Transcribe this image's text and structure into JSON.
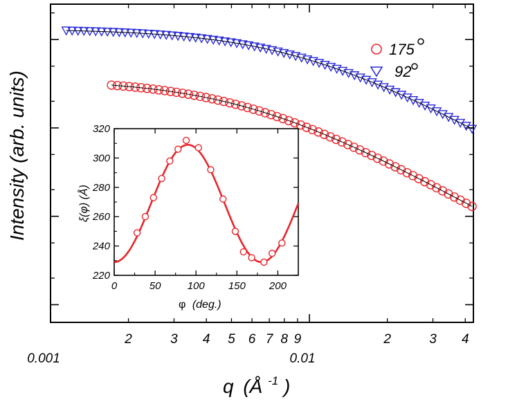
{
  "chart_data": [
    {
      "type": "scatter",
      "title": "",
      "xlabel": "q (Å-1)",
      "ylabel": "Intensity (arb. units)",
      "xscale": "log",
      "yscale": "log",
      "xlim": [
        0.001,
        0.043
      ],
      "ylim_decades": [
        -2.2,
        1.4
      ],
      "x_major_tick_labels": [
        {
          "value": 0.001,
          "label": "0.001"
        },
        {
          "value": 0.01,
          "label": "0.01"
        }
      ],
      "x_minor_tick_labels": [
        {
          "value": 0.002,
          "label": "2"
        },
        {
          "value": 0.003,
          "label": "3"
        },
        {
          "value": 0.004,
          "label": "4"
        },
        {
          "value": 0.005,
          "label": "5"
        },
        {
          "value": 0.006,
          "label": "6"
        },
        {
          "value": 0.007,
          "label": "7"
        },
        {
          "value": 0.008,
          "label": "8"
        },
        {
          "value": 0.009,
          "label": "9"
        },
        {
          "value": 0.02,
          "label": "2"
        },
        {
          "value": 0.03,
          "label": "3"
        },
        {
          "value": 0.04,
          "label": "4"
        }
      ],
      "legend_position": "top-right",
      "series": [
        {
          "name": "175°",
          "legend_text": "175",
          "marker": "circle",
          "color": "#e8242a",
          "params": {
            "amp": 0.0,
            "xi": 175
          }
        },
        {
          "name": "92°",
          "legend_text": "92",
          "marker": "triangle-down",
          "color": "#2a2ad8",
          "params": {
            "amp": 0.55,
            "xi": 92
          }
        }
      ]
    },
    {
      "type": "scatter",
      "title": "",
      "xlabel": "φ (deg.)",
      "ylabel": "ξ(φ) (Å)",
      "xlim": [
        0,
        225
      ],
      "ylim": [
        220,
        320
      ],
      "x_ticks": [
        0,
        50,
        100,
        150,
        200
      ],
      "y_ticks": [
        220,
        240,
        260,
        280,
        300,
        320
      ],
      "x_tick_labels": [
        "0",
        "50",
        "100",
        "150",
        "200"
      ],
      "y_tick_labels": [
        "220",
        "240",
        "260",
        "280",
        "300",
        "320"
      ],
      "series": [
        {
          "name": "data",
          "marker": "circle",
          "color": "#e8242a",
          "x": [
            28,
            38,
            48,
            58,
            68,
            78,
            88,
            103,
            118,
            133,
            148,
            158,
            168,
            183,
            193,
            205
          ],
          "y": [
            249,
            260,
            273,
            286,
            298,
            306,
            312,
            307,
            292,
            272,
            250,
            236,
            232,
            229,
            235,
            242
          ]
        },
        {
          "name": "fit",
          "style": "line",
          "color": "#e8242a",
          "model": "269 + 40*sin((x - 45) * pi/180 * 2)"
        }
      ]
    }
  ],
  "texts": {
    "ylabel": "Intensity (arb. units)",
    "xlabel_q": "q",
    "xlabel_unit": "(Å",
    "xlabel_exp": "-1",
    "xlabel_close": ")",
    "legend_175": "175",
    "legend_92": "92",
    "inset_ylabel": "ξ(φ) (Å)",
    "inset_xlabel_phi": "φ",
    "inset_xlabel_deg": "(deg.)"
  }
}
